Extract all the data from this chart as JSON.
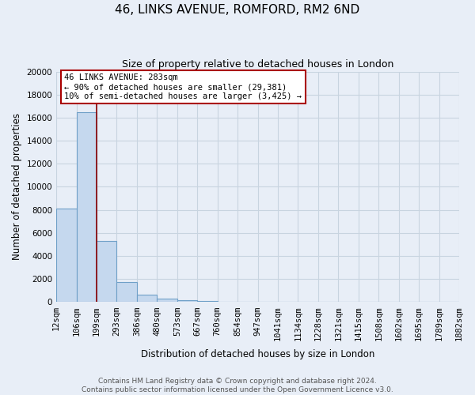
{
  "title": "46, LINKS AVENUE, ROMFORD, RM2 6ND",
  "subtitle": "Size of property relative to detached houses in London",
  "xlabel": "Distribution of detached houses by size in London",
  "ylabel": "Number of detached properties",
  "bar_values": [
    8100,
    16500,
    5300,
    1750,
    650,
    280,
    170,
    120,
    0,
    0,
    0,
    0,
    0,
    0,
    0,
    0,
    0,
    0,
    0,
    0
  ],
  "bar_color": "#c5d8ee",
  "bar_edge_color": "#6fa0c8",
  "categories": [
    "12sqm",
    "106sqm",
    "199sqm",
    "293sqm",
    "386sqm",
    "480sqm",
    "573sqm",
    "667sqm",
    "760sqm",
    "854sqm",
    "947sqm",
    "1041sqm",
    "1134sqm",
    "1228sqm",
    "1321sqm",
    "1415sqm",
    "1508sqm",
    "1602sqm",
    "1695sqm",
    "1789sqm",
    "1882sqm"
  ],
  "ylim": [
    0,
    20000
  ],
  "yticks": [
    0,
    2000,
    4000,
    6000,
    8000,
    10000,
    12000,
    14000,
    16000,
    18000,
    20000
  ],
  "vline_x": 2.0,
  "vline_color": "#8b0000",
  "annotation_title": "46 LINKS AVENUE: 283sqm",
  "annotation_line1": "← 90% of detached houses are smaller (29,381)",
  "annotation_line2": "10% of semi-detached houses are larger (3,425) →",
  "annotation_box_color": "#ffffff",
  "annotation_box_edge": "#aa0000",
  "footer1": "Contains HM Land Registry data © Crown copyright and database right 2024.",
  "footer2": "Contains public sector information licensed under the Open Government Licence v3.0.",
  "background_color": "#e8eef7",
  "plot_background": "#e8eef7",
  "grid_color": "#c8d4e0",
  "title_fontsize": 11,
  "subtitle_fontsize": 9,
  "axis_label_fontsize": 8.5,
  "tick_fontsize": 7.5,
  "footer_fontsize": 6.5
}
